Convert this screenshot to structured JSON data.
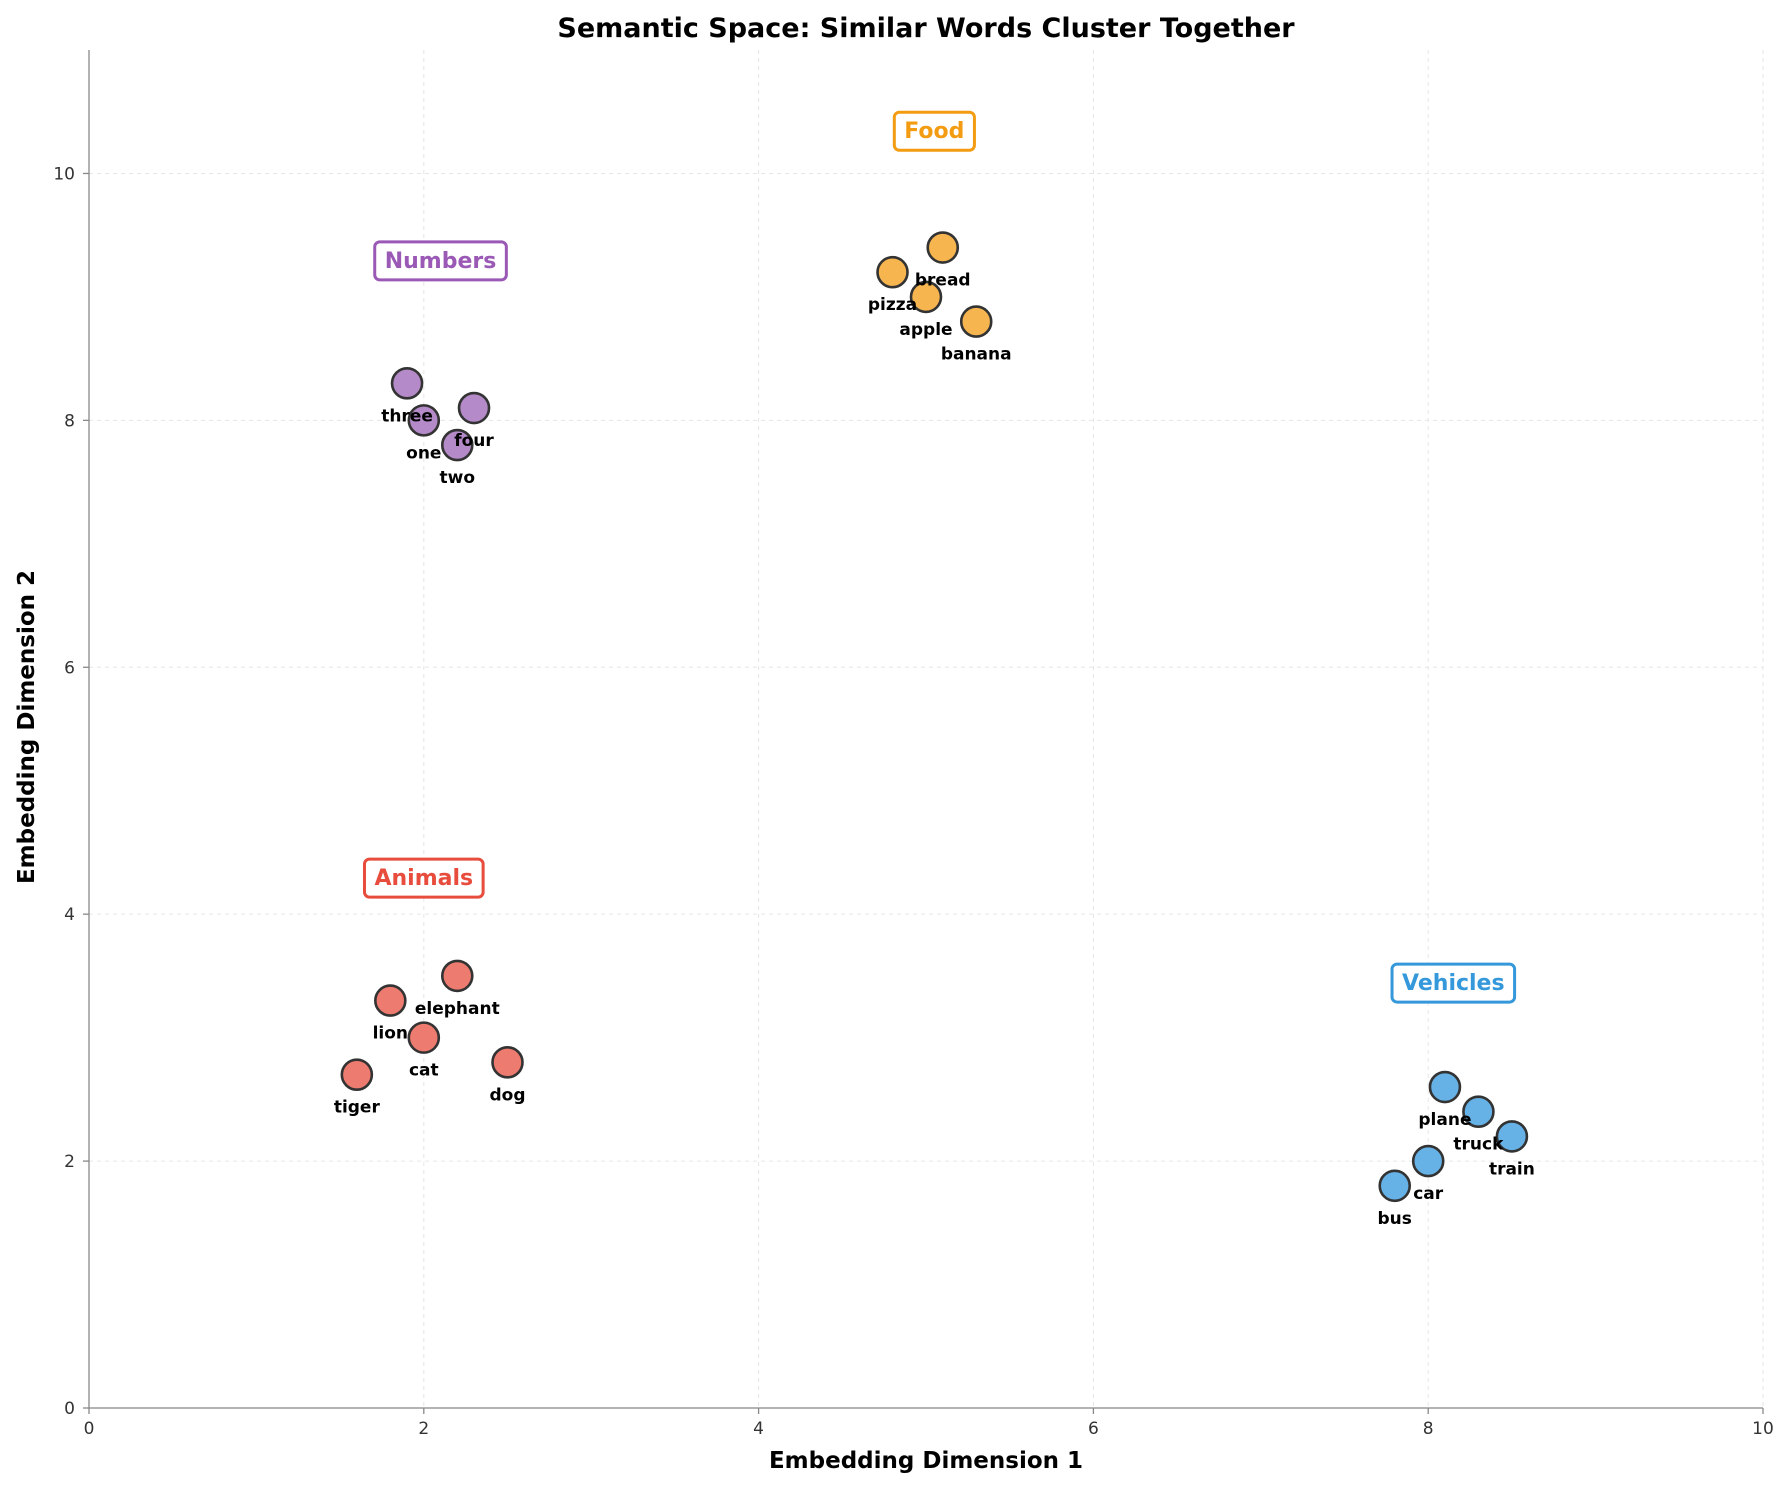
{
  "chart_data": {
    "type": "scatter",
    "title": "Semantic Space: Similar Words Cluster Together",
    "xlabel": "Embedding Dimension 1",
    "ylabel": "Embedding Dimension 2",
    "xlim": [
      0,
      10
    ],
    "ylim": [
      0,
      11
    ],
    "xticks": [
      0,
      2,
      4,
      6,
      8,
      10
    ],
    "yticks": [
      0,
      2,
      4,
      6,
      8,
      10
    ],
    "grid": true,
    "series": [
      {
        "name": "Animals",
        "color": "#e74c3c",
        "fill": "#ee7b6f",
        "label_pos": [
          2.0,
          4.3
        ],
        "points": [
          {
            "word": "cat",
            "x": 2.0,
            "y": 3.0
          },
          {
            "word": "dog",
            "x": 2.5,
            "y": 2.8
          },
          {
            "word": "lion",
            "x": 1.8,
            "y": 3.3
          },
          {
            "word": "tiger",
            "x": 1.6,
            "y": 2.7
          },
          {
            "word": "elephant",
            "x": 2.2,
            "y": 3.5
          }
        ]
      },
      {
        "name": "Vehicles",
        "color": "#3498db",
        "fill": "#66b1e6",
        "label_pos": [
          8.15,
          3.45
        ],
        "points": [
          {
            "word": "car",
            "x": 8.0,
            "y": 2.0
          },
          {
            "word": "truck",
            "x": 8.3,
            "y": 2.4
          },
          {
            "word": "bus",
            "x": 7.8,
            "y": 1.8
          },
          {
            "word": "train",
            "x": 8.5,
            "y": 2.2
          },
          {
            "word": "plane",
            "x": 8.1,
            "y": 2.6
          }
        ]
      },
      {
        "name": "Food",
        "color": "#f39c12",
        "fill": "#f6b54e",
        "label_pos": [
          5.05,
          10.35
        ],
        "points": [
          {
            "word": "apple",
            "x": 5.0,
            "y": 9.0
          },
          {
            "word": "banana",
            "x": 5.3,
            "y": 8.8
          },
          {
            "word": "pizza",
            "x": 4.8,
            "y": 9.2
          },
          {
            "word": "bread",
            "x": 5.1,
            "y": 9.4
          }
        ]
      },
      {
        "name": "Numbers",
        "color": "#9b59b6",
        "fill": "#b48ac8",
        "label_pos": [
          2.1,
          9.3
        ],
        "points": [
          {
            "word": "one",
            "x": 2.0,
            "y": 8.0
          },
          {
            "word": "two",
            "x": 2.2,
            "y": 7.8
          },
          {
            "word": "three",
            "x": 1.9,
            "y": 8.3
          },
          {
            "word": "four",
            "x": 2.3,
            "y": 8.1
          }
        ]
      }
    ]
  }
}
